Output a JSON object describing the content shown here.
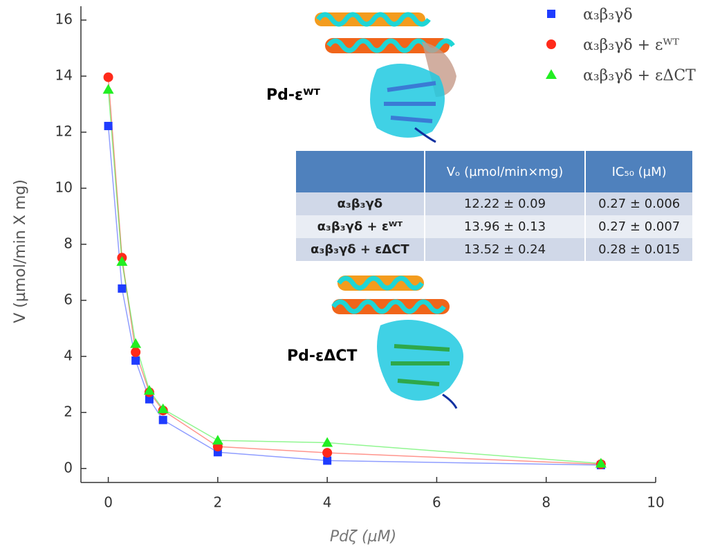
{
  "chart_data": {
    "type": "scatter",
    "xlabel": "Pdζ (µM)",
    "ylabel": "V (µmol/min X mg)",
    "x": [
      0,
      0.25,
      0.5,
      0.75,
      1,
      2,
      4,
      9
    ],
    "series": [
      {
        "name": "α₃β₃γδ",
        "color": "#1f3cff",
        "marker": "square",
        "values": [
          12.22,
          6.42,
          3.85,
          2.47,
          1.73,
          0.58,
          0.28,
          0.12
        ]
      },
      {
        "name": "α₃β₃γδ + εᵂᵀ",
        "color": "#ff2a1a",
        "marker": "circle",
        "values": [
          13.96,
          7.52,
          4.15,
          2.72,
          2.07,
          0.78,
          0.56,
          0.15
        ]
      },
      {
        "name": "α₃β₃γδ + εΔCT",
        "color": "#22ee22",
        "marker": "triangle",
        "values": [
          13.52,
          7.38,
          4.45,
          2.78,
          2.12,
          1.0,
          0.92,
          0.18
        ]
      }
    ],
    "xlim": [
      -0.5,
      10
    ],
    "ylim": [
      -0.5,
      16
    ],
    "xticks": [
      0,
      2,
      4,
      6,
      8,
      10
    ],
    "yticks": [
      0,
      2,
      4,
      6,
      8,
      10,
      12,
      14,
      16
    ],
    "legend": "upper right",
    "annotations": [
      "Pd-εᵂᵀ",
      "Pd-εΔCT"
    ],
    "table": {
      "headers": [
        "Vₒ (µmol/min×mg)",
        "IC₅₀ (µM)"
      ],
      "rows": [
        [
          "α₃β₃γδ",
          "12.22 ± 0.09",
          "0.27 ± 0.006"
        ],
        [
          "α₃β₃γδ + εᵂᵀ",
          "13.96 ± 0.13",
          "0.27 ± 0.007"
        ],
        [
          "α₃β₃γδ + εΔCT",
          "13.52 ± 0.24",
          "0.28 ± 0.015"
        ]
      ]
    }
  }
}
